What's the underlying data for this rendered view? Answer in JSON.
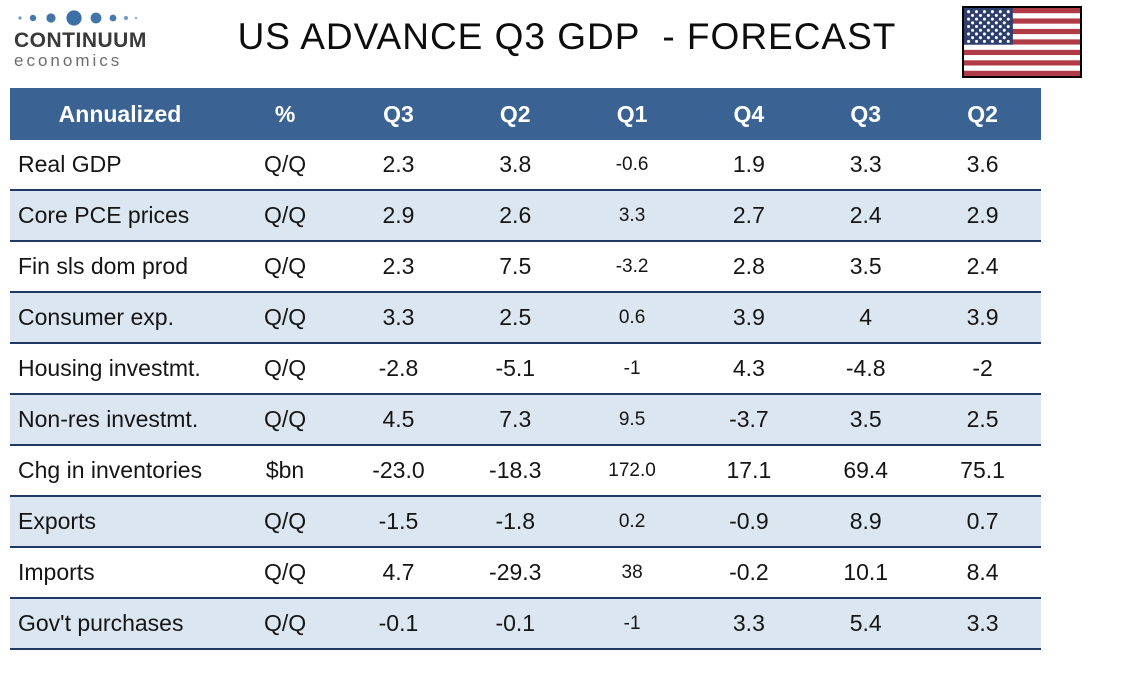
{
  "logo": {
    "brand": "CONTINUUM",
    "sub": "economics"
  },
  "title": "US ADVANCE Q3 GDP  - FORECAST",
  "flag_icon": "us-flag",
  "colors": {
    "header_bg": "#3a6394",
    "stripe_bg": "#dce6f1",
    "row_border": "#1f3864",
    "header_text": "#ffffff",
    "flag_red": "#b03a45",
    "flag_canton": "#2f3f6d",
    "logo_blue": "#4579ad"
  },
  "chart_data": {
    "type": "table",
    "title": "US ADVANCE Q3 GDP  - FORECAST",
    "columns": [
      "Annualized",
      "%",
      "Q3",
      "Q2",
      "Q1",
      "Q4",
      "Q3",
      "Q2"
    ],
    "rows": [
      {
        "label": "Real GDP",
        "unit": "Q/Q",
        "values": [
          "2.3",
          "3.8",
          "-0.6",
          "1.9",
          "3.3",
          "3.6"
        ]
      },
      {
        "label": "Core PCE prices",
        "unit": "Q/Q",
        "values": [
          "2.9",
          "2.6",
          "3.3",
          "2.7",
          "2.4",
          "2.9"
        ]
      },
      {
        "label": "Fin sls dom prod",
        "unit": "Q/Q",
        "values": [
          "2.3",
          "7.5",
          "-3.2",
          "2.8",
          "3.5",
          "2.4"
        ]
      },
      {
        "label": "Consumer exp.",
        "unit": "Q/Q",
        "values": [
          "3.3",
          "2.5",
          "0.6",
          "3.9",
          "4",
          "3.9"
        ]
      },
      {
        "label": "Housing investmt.",
        "unit": "Q/Q",
        "values": [
          "-2.8",
          "-5.1",
          "-1",
          "4.3",
          "-4.8",
          "-2"
        ]
      },
      {
        "label": "Non-res investmt.",
        "unit": "Q/Q",
        "values": [
          "4.5",
          "7.3",
          "9.5",
          "-3.7",
          "3.5",
          "2.5"
        ]
      },
      {
        "label": "Chg in inventories",
        "unit": "$bn",
        "values": [
          "-23.0",
          "-18.3",
          "172.0",
          "17.1",
          "69.4",
          "75.1"
        ]
      },
      {
        "label": "Exports",
        "unit": "Q/Q",
        "values": [
          "-1.5",
          "-1.8",
          "0.2",
          "-0.9",
          "8.9",
          "0.7"
        ]
      },
      {
        "label": "Imports",
        "unit": "Q/Q",
        "values": [
          "4.7",
          "-29.3",
          "38",
          "-0.2",
          "10.1",
          "8.4"
        ]
      },
      {
        "label": "Gov't purchases",
        "unit": "Q/Q",
        "values": [
          "-0.1",
          "-0.1",
          "-1",
          "3.3",
          "5.4",
          "3.3"
        ]
      }
    ]
  }
}
